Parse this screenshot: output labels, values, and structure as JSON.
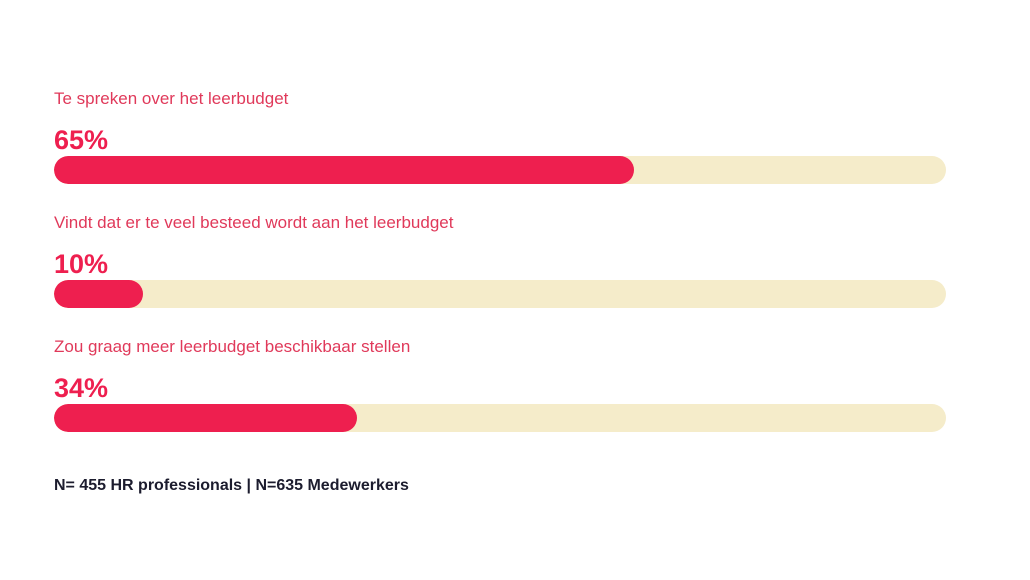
{
  "chart_data": {
    "type": "bar",
    "orientation": "horizontal",
    "categories": [
      "Te spreken over het leerbudget",
      "Vindt dat er te veel besteed wordt aan het leerbudget",
      "Zou graag meer leerbudget beschikbaar stellen"
    ],
    "values": [
      65,
      10,
      34
    ],
    "value_labels": [
      "65%",
      "10%",
      "34%"
    ],
    "xlim": [
      0,
      100
    ],
    "grid": false,
    "title": "",
    "xlabel": "",
    "ylabel": ""
  },
  "footnote": "N= 455 HR professionals  |  N=635 Medewerkers",
  "colors": {
    "bar_fill": "#ee1f4f",
    "track": "#f5ecca",
    "label_text": "#e0395a",
    "footnote_text": "#1c1c2e"
  }
}
